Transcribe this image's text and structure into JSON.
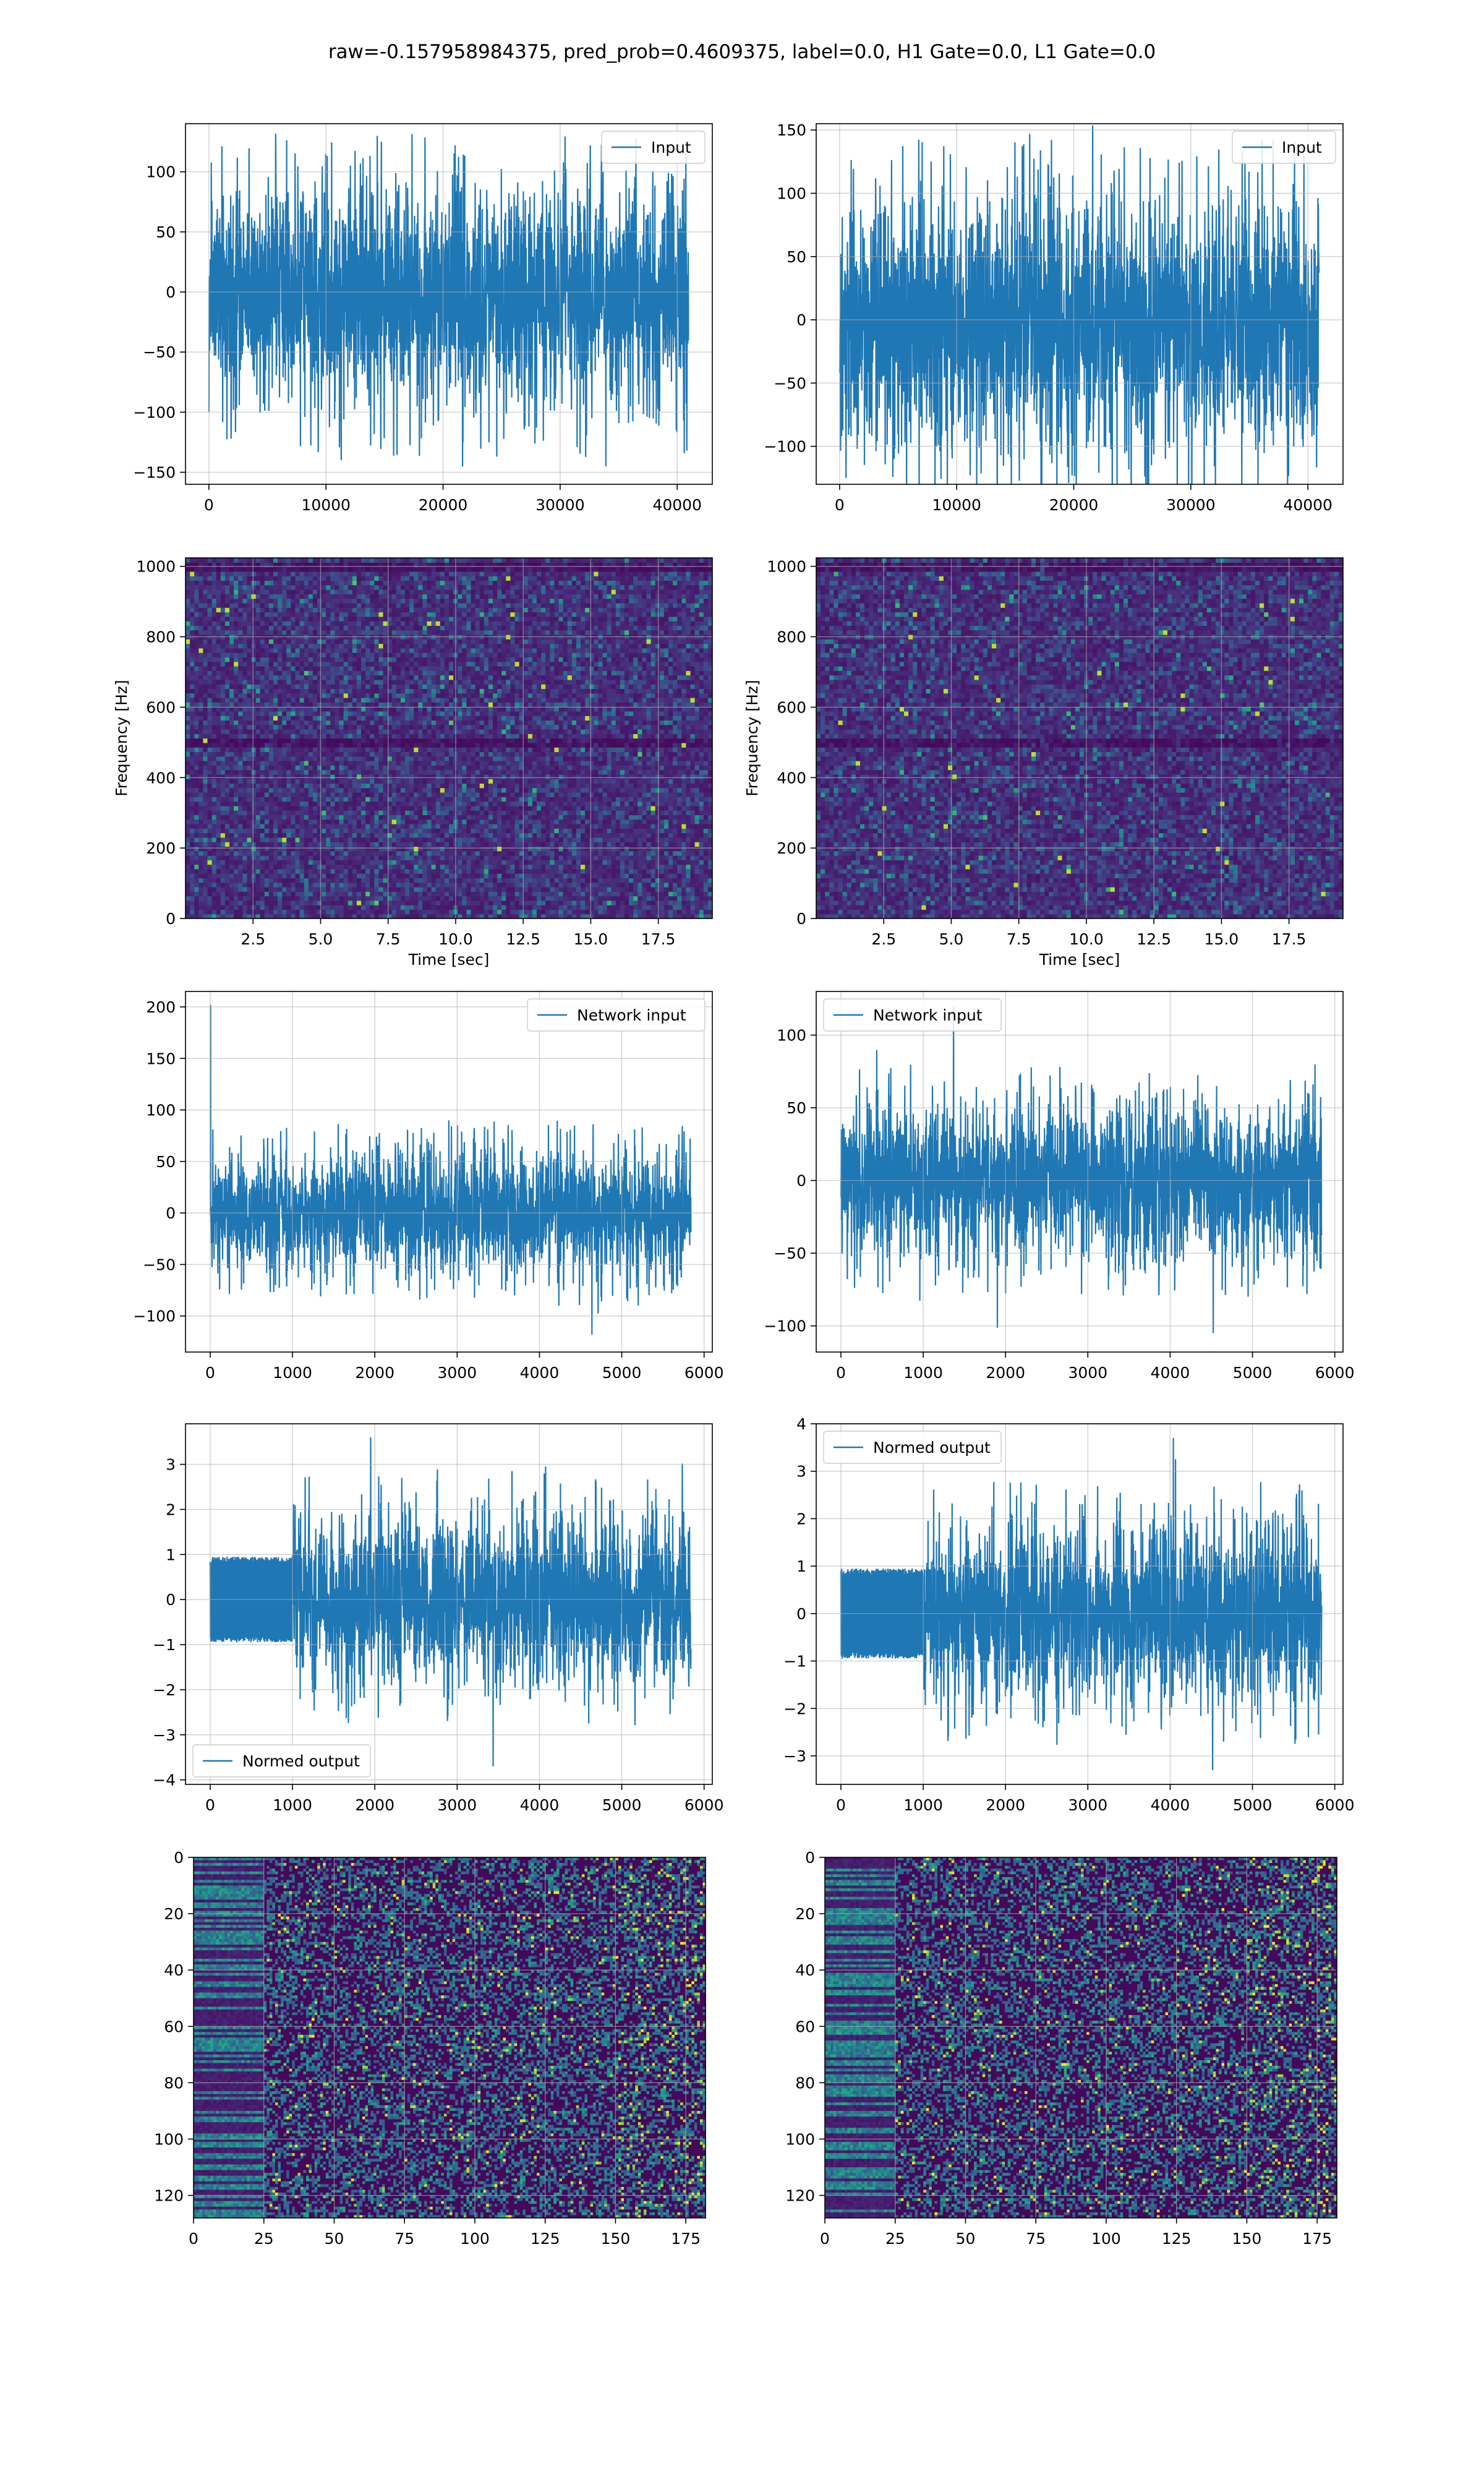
{
  "figure": {
    "suptitle": "raw=-0.157958984375, pred_prob=0.4609375, label=0.0, H1 Gate=0.0, L1 Gate=0.0",
    "colors": {
      "series": "#1f77b4",
      "grid": "#b0b0b0"
    }
  },
  "chart_data": [
    {
      "type": "line",
      "panel": "row1-left",
      "series": [
        {
          "name": "Input",
          "x_range": [
            0,
            40960
          ],
          "y_envelope": [
            -70,
            65
          ],
          "y_extremes": [
            -145,
            122
          ]
        }
      ],
      "xlim": [
        -2000,
        43000
      ],
      "ylim": [
        -160,
        140
      ],
      "xticks": [
        0,
        10000,
        20000,
        30000,
        40000
      ],
      "xtick_labels": [
        "0",
        "10000",
        "20000",
        "30000",
        "40000"
      ],
      "yticks": [
        -150,
        -100,
        -50,
        0,
        50,
        100
      ],
      "ytick_labels": [
        "−150",
        "−100",
        "−50",
        "0",
        "50",
        "100"
      ],
      "xlabel": "",
      "ylabel": "",
      "grid": true,
      "legend": "upper right"
    },
    {
      "type": "line",
      "panel": "row1-right",
      "series": [
        {
          "name": "Input",
          "x_range": [
            0,
            40960
          ],
          "y_envelope": [
            -75,
            70
          ],
          "y_extremes": [
            -115,
            142
          ]
        }
      ],
      "xlim": [
        -2000,
        43000
      ],
      "ylim": [
        -130,
        155
      ],
      "xticks": [
        0,
        10000,
        20000,
        30000,
        40000
      ],
      "xtick_labels": [
        "0",
        "10000",
        "20000",
        "30000",
        "40000"
      ],
      "yticks": [
        -100,
        -50,
        0,
        50,
        100,
        150
      ],
      "ytick_labels": [
        "−100",
        "−50",
        "0",
        "50",
        "100",
        "150"
      ],
      "xlabel": "",
      "ylabel": "",
      "grid": true,
      "legend": "upper right"
    },
    {
      "type": "heatmap",
      "panel": "row2-left",
      "colormap": "viridis",
      "xlim": [
        0,
        19.5
      ],
      "ylim": [
        0,
        1024
      ],
      "xticks": [
        2.5,
        5.0,
        7.5,
        10.0,
        12.5,
        15.0,
        17.5
      ],
      "xtick_labels": [
        "2.5",
        "5.0",
        "7.5",
        "10.0",
        "12.5",
        "15.0",
        "17.5"
      ],
      "yticks": [
        0,
        200,
        400,
        600,
        800,
        1000
      ],
      "ytick_labels": [
        "0",
        "200",
        "400",
        "600",
        "800",
        "1000"
      ],
      "xlabel": "Time [sec]",
      "ylabel": "Frequency [Hz]",
      "grid": true,
      "dark_bands_hz": [
        500,
        1000
      ]
    },
    {
      "type": "heatmap",
      "panel": "row2-right",
      "colormap": "viridis",
      "xlim": [
        0,
        19.5
      ],
      "ylim": [
        0,
        1024
      ],
      "xticks": [
        2.5,
        5.0,
        7.5,
        10.0,
        12.5,
        15.0,
        17.5
      ],
      "xtick_labels": [
        "2.5",
        "5.0",
        "7.5",
        "10.0",
        "12.5",
        "15.0",
        "17.5"
      ],
      "yticks": [
        0,
        200,
        400,
        600,
        800,
        1000
      ],
      "ytick_labels": [
        "0",
        "200",
        "400",
        "600",
        "800",
        "1000"
      ],
      "xlabel": "Time [sec]",
      "ylabel": "Frequency [Hz]",
      "grid": true,
      "dark_bands_hz": [
        500,
        1000
      ]
    },
    {
      "type": "line",
      "panel": "row3-left",
      "series": [
        {
          "name": "Network input",
          "x_range": [
            0,
            5840
          ],
          "y_envelope": [
            -45,
            45
          ],
          "y_extremes": [
            -118,
            202
          ]
        }
      ],
      "xlim": [
        -300,
        6100
      ],
      "ylim": [
        -135,
        215
      ],
      "xticks": [
        0,
        1000,
        2000,
        3000,
        4000,
        5000,
        6000
      ],
      "xtick_labels": [
        "0",
        "1000",
        "2000",
        "3000",
        "4000",
        "5000",
        "6000"
      ],
      "yticks": [
        -100,
        -50,
        0,
        50,
        100,
        150,
        200
      ],
      "ytick_labels": [
        "−100",
        "−50",
        "0",
        "50",
        "100",
        "150",
        "200"
      ],
      "xlabel": "",
      "ylabel": "",
      "grid": true,
      "legend": "upper right"
    },
    {
      "type": "line",
      "panel": "row3-right",
      "series": [
        {
          "name": "Network input",
          "x_range": [
            0,
            5840
          ],
          "y_envelope": [
            -40,
            40
          ],
          "y_extremes": [
            -105,
            120
          ]
        }
      ],
      "xlim": [
        -300,
        6100
      ],
      "ylim": [
        -118,
        130
      ],
      "xticks": [
        0,
        1000,
        2000,
        3000,
        4000,
        5000,
        6000
      ],
      "xtick_labels": [
        "0",
        "1000",
        "2000",
        "3000",
        "4000",
        "5000",
        "6000"
      ],
      "yticks": [
        -100,
        -50,
        0,
        50,
        100
      ],
      "ytick_labels": [
        "−100",
        "−50",
        "0",
        "50",
        "100"
      ],
      "xlabel": "",
      "ylabel": "",
      "grid": true,
      "legend": "upper left"
    },
    {
      "type": "line",
      "panel": "row4-left",
      "series": [
        {
          "name": "Normed output",
          "x_range": [
            0,
            5840
          ],
          "clipped_until": 1000,
          "clip_level": 0.95,
          "y_envelope": [
            -1.4,
            1.4
          ],
          "y_extremes": [
            -3.7,
            3.6
          ]
        }
      ],
      "xlim": [
        -300,
        6100
      ],
      "ylim": [
        -4.1,
        3.9
      ],
      "xticks": [
        0,
        1000,
        2000,
        3000,
        4000,
        5000,
        6000
      ],
      "xtick_labels": [
        "0",
        "1000",
        "2000",
        "3000",
        "4000",
        "5000",
        "6000"
      ],
      "yticks": [
        -4,
        -3,
        -2,
        -1,
        0,
        1,
        2,
        3
      ],
      "ytick_labels": [
        "−4",
        "−3",
        "−2",
        "−1",
        "0",
        "1",
        "2",
        "3"
      ],
      "xlabel": "",
      "ylabel": "",
      "grid": true,
      "legend": "lower left"
    },
    {
      "type": "line",
      "panel": "row4-right",
      "series": [
        {
          "name": "Normed output",
          "x_range": [
            0,
            5840
          ],
          "clipped_until": 1000,
          "clip_level": 0.95,
          "y_envelope": [
            -1.4,
            1.4
          ],
          "y_extremes": [
            -3.3,
            3.7
          ]
        }
      ],
      "xlim": [
        -300,
        6100
      ],
      "ylim": [
        -3.6,
        4.0
      ],
      "xticks": [
        0,
        1000,
        2000,
        3000,
        4000,
        5000,
        6000
      ],
      "xtick_labels": [
        "0",
        "1000",
        "2000",
        "3000",
        "4000",
        "5000",
        "6000"
      ],
      "yticks": [
        -3,
        -2,
        -1,
        0,
        1,
        2,
        3,
        4
      ],
      "ytick_labels": [
        "−3",
        "−2",
        "−1",
        "0",
        "1",
        "2",
        "3",
        "4"
      ],
      "xlabel": "",
      "ylabel": "",
      "grid": true,
      "legend": "upper left"
    },
    {
      "type": "heatmap",
      "panel": "row5-left",
      "colormap": "viridis",
      "shape": [
        128,
        182
      ],
      "xlim": [
        0,
        182
      ],
      "ylim": [
        128,
        0
      ],
      "xticks": [
        0,
        25,
        50,
        75,
        100,
        125,
        150,
        175
      ],
      "xtick_labels": [
        "0",
        "25",
        "50",
        "75",
        "100",
        "125",
        "150",
        "175"
      ],
      "yticks": [
        0,
        20,
        40,
        60,
        80,
        100,
        120
      ],
      "ytick_labels": [
        "0",
        "20",
        "40",
        "60",
        "80",
        "100",
        "120"
      ],
      "xlabel": "",
      "ylabel": "",
      "grid": true
    },
    {
      "type": "heatmap",
      "panel": "row5-right",
      "colormap": "viridis",
      "shape": [
        128,
        182
      ],
      "xlim": [
        0,
        182
      ],
      "ylim": [
        128,
        0
      ],
      "xticks": [
        0,
        25,
        50,
        75,
        100,
        125,
        150,
        175
      ],
      "xtick_labels": [
        "0",
        "25",
        "50",
        "75",
        "100",
        "125",
        "150",
        "175"
      ],
      "yticks": [
        0,
        20,
        40,
        60,
        80,
        100,
        120
      ],
      "ytick_labels": [
        "0",
        "20",
        "40",
        "60",
        "80",
        "100",
        "120"
      ],
      "xlabel": "",
      "ylabel": "",
      "grid": true
    }
  ]
}
